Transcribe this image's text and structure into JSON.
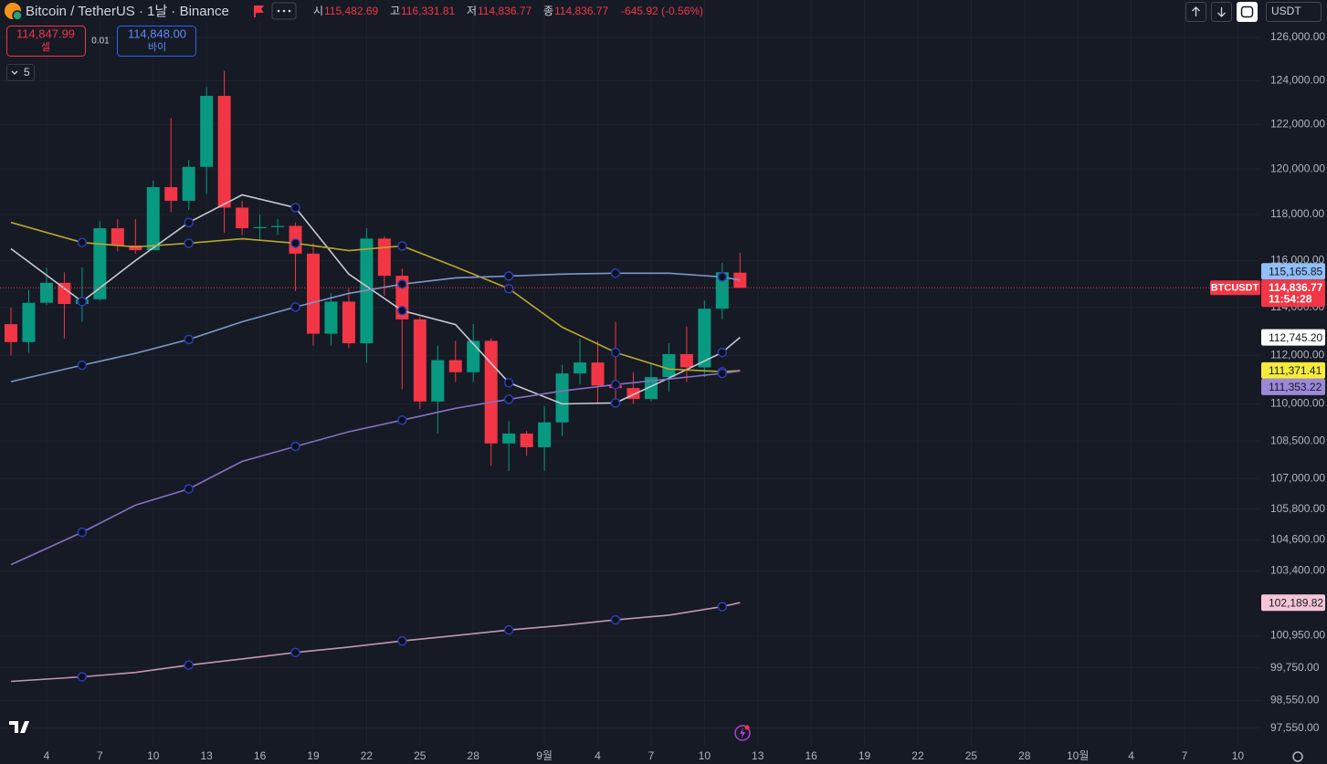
{
  "header": {
    "symbol": "Bitcoin / TetherUS · 1날 · Binance",
    "ohlc": [
      {
        "label": "시",
        "value": "115,482.69"
      },
      {
        "label": "고",
        "value": "116,331.81"
      },
      {
        "label": "저",
        "value": "114,836.77"
      },
      {
        "label": "종",
        "value": "114,836.77"
      }
    ],
    "change": "-645.92 (-0.56%)",
    "currency": "USDT"
  },
  "order": {
    "sell_price": "114,847.99",
    "sell_label": "셀",
    "size": "0.01",
    "buy_price": "114,848.00",
    "buy_label": "바이"
  },
  "indicators_count": "5",
  "chart_data": {
    "type": "candlestick",
    "categories": [
      null,
      null,
      "4",
      null,
      null,
      "7",
      null,
      null,
      "10",
      null,
      null,
      "13",
      null,
      null,
      "16",
      null,
      null,
      "19",
      null,
      null,
      "22",
      null,
      null,
      "25",
      null,
      null,
      "28",
      null,
      null,
      null,
      "9월",
      null,
      null,
      "4",
      null,
      null,
      "7",
      null,
      null,
      "10",
      null,
      null,
      "13",
      null,
      null,
      "16",
      null,
      null,
      "19",
      null,
      null,
      "22",
      null,
      null,
      "25",
      null,
      null,
      "28",
      null,
      null,
      "10월",
      null,
      null,
      "4",
      null,
      null,
      "7",
      null,
      null,
      "10"
    ],
    "open": [
      113300,
      112550,
      114200,
      115050,
      114150,
      114350,
      117400,
      116650,
      116450,
      119200,
      118600,
      120100,
      123300,
      118300,
      117400,
      117450,
      117500,
      116300,
      112900,
      114250,
      112500,
      116950,
      115350,
      113500,
      110100,
      111800,
      111300,
      112600,
      108400,
      108800,
      108250,
      109250,
      111250,
      111700,
      110750,
      110650,
      110200,
      111100,
      112050,
      111500,
      113950,
      115482.69,
      null,
      null,
      null,
      null,
      null,
      null,
      null,
      null,
      null,
      null,
      null,
      null,
      null,
      null,
      null,
      null,
      null,
      null,
      null,
      null,
      null,
      null,
      null,
      null,
      null,
      null,
      null,
      null
    ],
    "high": [
      114000,
      114750,
      115700,
      115500,
      115700,
      117700,
      117800,
      117800,
      119500,
      122300,
      120400,
      123700,
      124450,
      118600,
      118000,
      117800,
      117650,
      116750,
      114600,
      114800,
      117400,
      117050,
      115650,
      113600,
      112400,
      112600,
      113300,
      112700,
      109300,
      108900,
      109900,
      111600,
      112700,
      112600,
      113400,
      111300,
      111700,
      112500,
      113200,
      114300,
      115900,
      116331.81,
      null,
      null,
      null,
      null,
      null,
      null,
      null,
      null,
      null,
      null,
      null,
      null,
      null,
      null,
      null,
      null,
      null,
      null,
      null,
      null,
      null,
      null,
      null,
      null,
      null,
      null,
      null,
      null
    ],
    "low": [
      112000,
      112100,
      114100,
      112700,
      113400,
      114300,
      116400,
      116300,
      116450,
      118100,
      118200,
      118900,
      117200,
      117100,
      116900,
      117100,
      114700,
      112400,
      112400,
      112300,
      111700,
      114500,
      110600,
      109800,
      108800,
      110900,
      110900,
      107500,
      107300,
      107900,
      107300,
      108700,
      110800,
      110000,
      110000,
      110000,
      110100,
      110500,
      110900,
      111100,
      113500,
      114836.77,
      null,
      null,
      null,
      null,
      null,
      null,
      null,
      null,
      null,
      null,
      null,
      null,
      null,
      null,
      null,
      null,
      null,
      null,
      null,
      null,
      null,
      null,
      null,
      null,
      null,
      null,
      null,
      null
    ],
    "close": [
      112550,
      114200,
      115050,
      114150,
      114350,
      117400,
      116650,
      116450,
      119200,
      118600,
      120100,
      123300,
      118300,
      117400,
      117450,
      117500,
      116300,
      112900,
      114250,
      112500,
      116950,
      115350,
      113500,
      110100,
      111800,
      111300,
      112600,
      108400,
      108800,
      108250,
      109250,
      111250,
      111700,
      110750,
      110650,
      110200,
      111100,
      112050,
      111500,
      113950,
      115500,
      114836.77,
      null,
      null,
      null,
      null,
      null,
      null,
      null,
      null,
      null,
      null,
      null,
      null,
      null,
      null,
      null,
      null,
      null,
      null,
      null,
      null,
      null,
      null,
      null,
      null,
      null,
      null,
      null,
      null
    ],
    "up_color": "#089981",
    "down_color": "#f23645",
    "ylim": [
      96912,
      127761
    ],
    "log_scale": true,
    "grid": true,
    "yticks": [
      {
        "value": 126000,
        "label": "126,000.00"
      },
      {
        "value": 124000,
        "label": "124,000.00"
      },
      {
        "value": 122000,
        "label": "122,000.00"
      },
      {
        "value": 120000,
        "label": "120,000.00"
      },
      {
        "value": 118000,
        "label": "118,000.00"
      },
      {
        "value": 116000,
        "label": "116,000.00"
      },
      {
        "value": 114000,
        "label": "114,000.00"
      },
      {
        "value": 112000,
        "label": "112,000.00"
      },
      {
        "value": 110000,
        "label": "110,000.00"
      },
      {
        "value": 108500,
        "label": "108,500.00"
      },
      {
        "value": 107000,
        "label": "107,000.00"
      },
      {
        "value": 105800,
        "label": "105,800.00"
      },
      {
        "value": 104600,
        "label": "104,600.00"
      },
      {
        "value": 103400,
        "label": "103,400.00"
      },
      {
        "value": 100950,
        "label": "100,950.00"
      },
      {
        "value": 99750,
        "label": "99,750.00"
      },
      {
        "value": 98550,
        "label": "98,550.00"
      },
      {
        "value": 97550,
        "label": "97,550.00"
      }
    ],
    "moving_averages": [
      {
        "color": "#c8cad2",
        "tag_color": "#ffffff",
        "x": [
          0,
          4,
          7,
          10,
          13,
          16,
          19,
          22,
          25,
          28,
          31,
          34,
          37,
          40,
          41
        ],
        "values": [
          116510,
          114250,
          116000,
          117650,
          118860,
          118300,
          115420,
          113870,
          113280,
          110870,
          110000,
          110040,
          111060,
          112120,
          112745.2
        ],
        "last_label": "112,745.20"
      },
      {
        "color": "#b8a82c",
        "tag_color": "#f5eb3b",
        "x": [
          0,
          4,
          7,
          10,
          13,
          16,
          19,
          22,
          25,
          28,
          31,
          34,
          37,
          40,
          41
        ],
        "values": [
          117650,
          116780,
          116590,
          116750,
          116940,
          116750,
          116430,
          116630,
          115730,
          114800,
          113170,
          112120,
          111430,
          111320,
          111371.41
        ],
        "last_label": "111,371.41"
      },
      {
        "color": "#7d97c5",
        "tag_color": "#90bff9",
        "x": [
          0,
          4,
          7,
          10,
          13,
          16,
          19,
          22,
          25,
          28,
          31,
          34,
          37,
          40,
          41
        ],
        "values": [
          110910,
          111590,
          112080,
          112660,
          113400,
          114020,
          114600,
          114990,
          115260,
          115340,
          115420,
          115460,
          115460,
          115300,
          115165.85
        ],
        "last_label": "115,165.85"
      },
      {
        "color": "#8570c2",
        "tag_color": "#9c88d8",
        "x": [
          0,
          4,
          7,
          10,
          13,
          16,
          19,
          22,
          25,
          28,
          31,
          34,
          37,
          40,
          41
        ],
        "values": [
          103640,
          104890,
          105950,
          106590,
          107680,
          108280,
          108870,
          109340,
          109820,
          110190,
          110530,
          110790,
          111020,
          111250,
          111353.22
        ],
        "last_label": "111,353.22"
      },
      {
        "color": "#c596b4",
        "tag_color": "#f6c6d8",
        "x": [
          0,
          4,
          7,
          10,
          13,
          16,
          19,
          22,
          25,
          28,
          31,
          34,
          37,
          40,
          41
        ],
        "values": [
          99250,
          99420,
          99580,
          99850,
          100080,
          100320,
          100520,
          100750,
          100950,
          101160,
          101330,
          101540,
          101720,
          102040,
          102189.82
        ],
        "last_label": "102,189.82"
      }
    ],
    "last_price": {
      "value": 114836.77,
      "label": "114,836.77",
      "symbol": "BTCUSDT",
      "countdown": "11:54:28",
      "color": "#f23645"
    }
  }
}
